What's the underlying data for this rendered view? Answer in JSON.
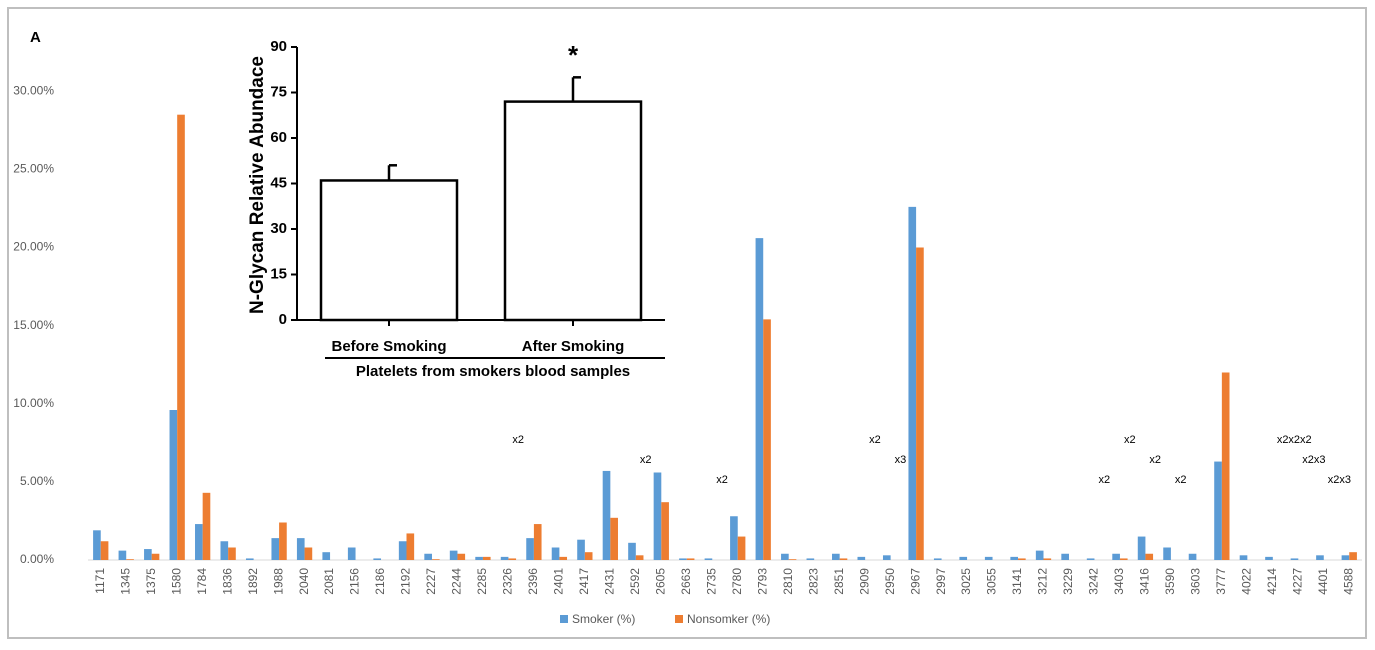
{
  "panel_label": "A",
  "chart_data": [
    {
      "type": "bar",
      "categories": [
        "1171",
        "1345",
        "1375",
        "1580",
        "1784",
        "1836",
        "1892",
        "1988",
        "2040",
        "2081",
        "2156",
        "2186",
        "2192",
        "2227",
        "2244",
        "2285",
        "2326",
        "2396",
        "2401",
        "2417",
        "2431",
        "2592",
        "2605",
        "2663",
        "2735",
        "2780",
        "2793",
        "2810",
        "2823",
        "2851",
        "2909",
        "2950",
        "2967",
        "2997",
        "3025",
        "3055",
        "3141",
        "3212",
        "3229",
        "3242",
        "3403",
        "3416",
        "3590",
        "3603",
        "3777",
        "4022",
        "4214",
        "4227",
        "4401",
        "4588"
      ],
      "series": [
        {
          "name": "Smoker (%)",
          "color": "#5b9bd5",
          "values": [
            1.9,
            0.6,
            0.7,
            9.6,
            2.3,
            1.2,
            0.1,
            1.4,
            1.4,
            0.5,
            0.8,
            0.1,
            1.2,
            0.4,
            0.6,
            0.2,
            0.2,
            1.4,
            0.8,
            1.3,
            5.7,
            1.1,
            5.6,
            0.1,
            0.1,
            2.8,
            20.6,
            0.4,
            0.1,
            0.4,
            0.2,
            0.3,
            22.6,
            0.1,
            0.2,
            0.2,
            0.2,
            0.6,
            0.4,
            0.1,
            0.4,
            1.5,
            0.8,
            0.4,
            6.3,
            0.3,
            0.2,
            0.1,
            0.3,
            0.3
          ]
        },
        {
          "name": "Nonsomker (%)",
          "color": "#ed7d31",
          "values": [
            1.2,
            0.05,
            0.4,
            28.5,
            4.3,
            0.8,
            0,
            2.4,
            0.8,
            0,
            0,
            0,
            1.7,
            0.05,
            0.4,
            0.2,
            0.1,
            2.3,
            0.2,
            0.5,
            2.7,
            0.3,
            3.7,
            0.1,
            0,
            1.5,
            15.4,
            0.05,
            0,
            0.1,
            0,
            0,
            20.0,
            0,
            0,
            0,
            0.1,
            0.1,
            0,
            0,
            0.1,
            0.4,
            0,
            0,
            12.0,
            0,
            0,
            0,
            0,
            0.5
          ]
        }
      ],
      "ylim": [
        0,
        32
      ],
      "yticks": [
        {
          "value": 0,
          "label": "0.00%"
        },
        {
          "value": 5,
          "label": "5.00%"
        },
        {
          "value": 10,
          "label": "10.00%"
        },
        {
          "value": 15,
          "label": "15.00%"
        },
        {
          "value": 20,
          "label": "20.00%"
        },
        {
          "value": 25,
          "label": "25.00%"
        },
        {
          "value": 30,
          "label": "30.00%"
        }
      ],
      "legend": "bottom",
      "annotations": [
        {
          "category": "2326",
          "text": "x2"
        },
        {
          "category": "2592",
          "text": "x2"
        },
        {
          "category": "2735",
          "text": "x2"
        },
        {
          "category": "2909",
          "text": "x2"
        },
        {
          "category": "2950",
          "text": "x3"
        },
        {
          "category": "3242",
          "text": "x2"
        },
        {
          "category": "3403",
          "text": "x2"
        },
        {
          "category": "3416",
          "text": "x2"
        },
        {
          "category": "3590",
          "text": "x2"
        },
        {
          "category": "4214",
          "text": "x2x2x2"
        },
        {
          "category": "4227",
          "text": "x2x3"
        },
        {
          "category": "4401",
          "text": "x2x3"
        }
      ]
    },
    {
      "type": "bar",
      "categories": [
        "Before Smoking",
        "After Smoking"
      ],
      "values": [
        46,
        72
      ],
      "errors": [
        5,
        8
      ],
      "color": "#ffffff",
      "ylim": [
        0,
        90
      ],
      "yticks": [
        0,
        15,
        30,
        45,
        60,
        75,
        90
      ],
      "y_label": "N-Glycan Relative Abundace",
      "x_label": "Platelets from smokers blood samples",
      "annotation": "*"
    }
  ]
}
